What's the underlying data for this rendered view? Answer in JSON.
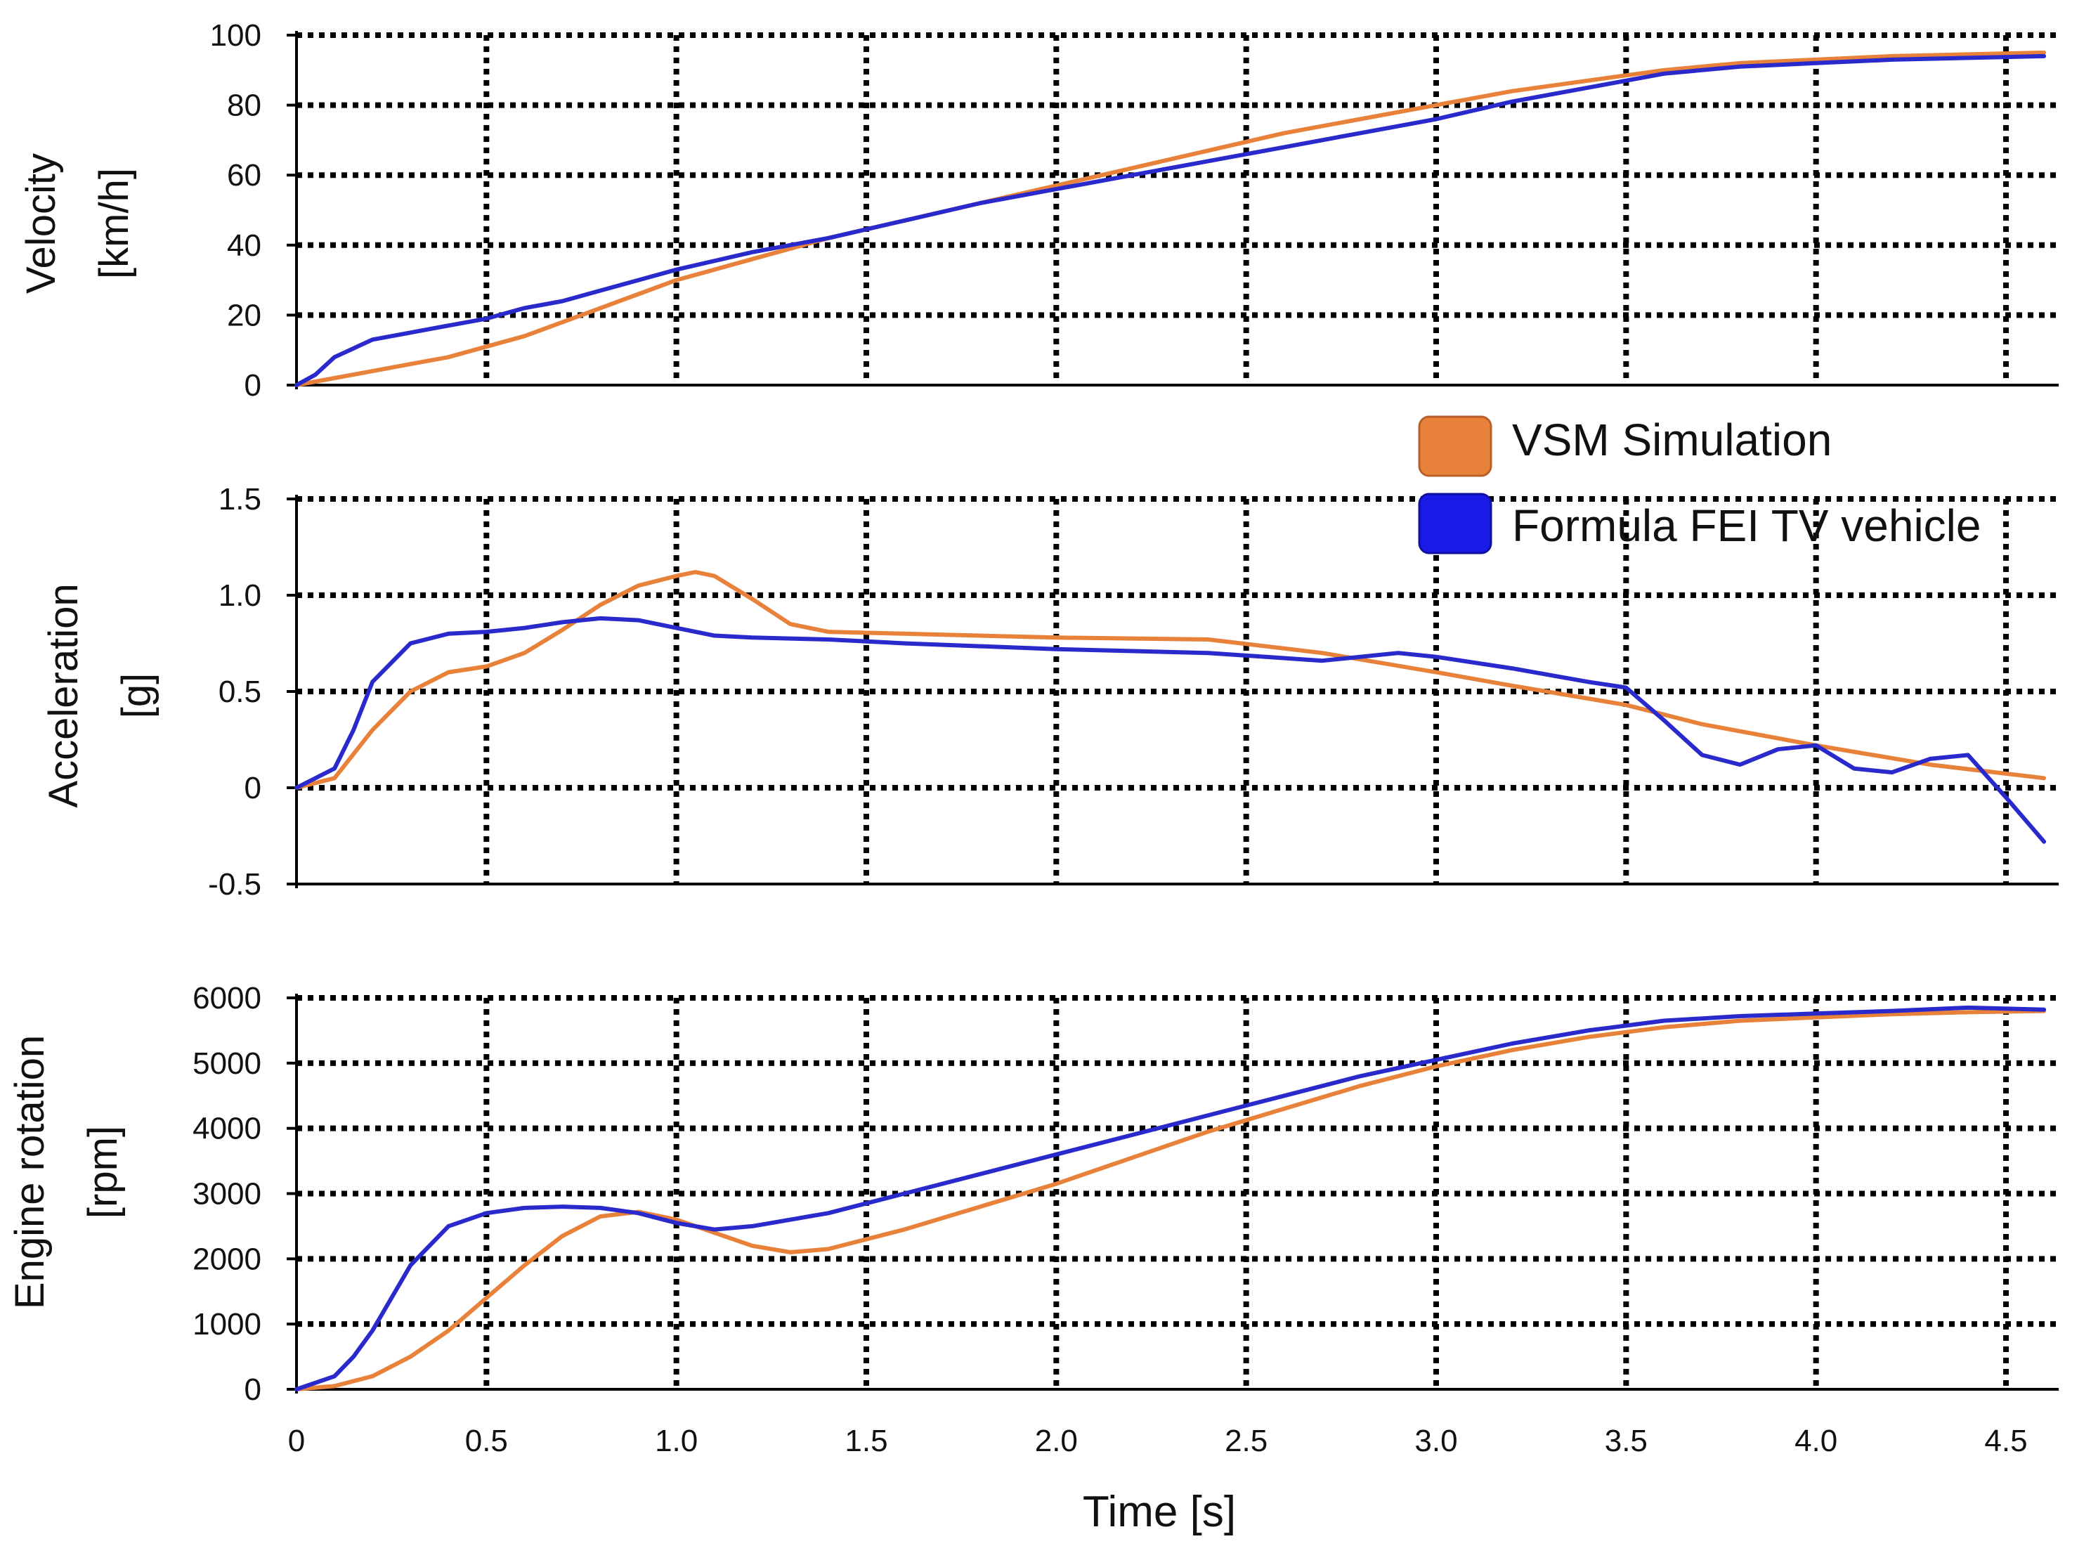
{
  "chart_data": [
    {
      "type": "line",
      "id": "velocity",
      "ylabel_lines": [
        "Velocity",
        "[km/h]"
      ],
      "ylim": [
        0,
        100
      ],
      "yticks": [
        0,
        20,
        40,
        60,
        80,
        100
      ],
      "ytick_labels": [
        "0",
        "20",
        "40",
        "60",
        "80",
        "100"
      ],
      "xlim": [
        0,
        4.6
      ],
      "grid": true,
      "series": [
        {
          "name": "VSM Simulation",
          "x": [
            0,
            0.1,
            0.2,
            0.3,
            0.4,
            0.5,
            0.6,
            0.7,
            0.8,
            0.9,
            1.0,
            1.2,
            1.4,
            1.6,
            1.8,
            2.0,
            2.2,
            2.4,
            2.6,
            2.8,
            3.0,
            3.2,
            3.4,
            3.6,
            3.8,
            4.0,
            4.2,
            4.4,
            4.6
          ],
          "y": [
            0,
            2,
            4,
            6,
            8,
            11,
            14,
            18,
            22,
            26,
            30,
            36,
            42,
            47,
            52,
            57,
            62,
            67,
            72,
            76,
            80,
            84,
            87,
            90,
            92,
            93,
            94,
            94.5,
            95
          ]
        },
        {
          "name": "Formula FEI TV vehicle",
          "x": [
            0,
            0.05,
            0.1,
            0.2,
            0.3,
            0.4,
            0.5,
            0.6,
            0.7,
            0.8,
            0.9,
            1.0,
            1.2,
            1.4,
            1.6,
            1.8,
            2.0,
            2.2,
            2.4,
            2.6,
            2.8,
            3.0,
            3.2,
            3.4,
            3.6,
            3.8,
            4.0,
            4.2,
            4.4,
            4.6
          ],
          "y": [
            0,
            3,
            8,
            13,
            15,
            17,
            19,
            22,
            24,
            27,
            30,
            33,
            38,
            42,
            47,
            52,
            56,
            60,
            64,
            68,
            72,
            76,
            81,
            85,
            89,
            91,
            92,
            93,
            93.5,
            94
          ]
        }
      ]
    },
    {
      "type": "line",
      "id": "acceleration",
      "ylabel_lines": [
        "Acceleration",
        "[g]"
      ],
      "ylim": [
        -0.5,
        1.5
      ],
      "yticks": [
        -0.5,
        0,
        0.5,
        1.0,
        1.5
      ],
      "ytick_labels": [
        "-0.5",
        "0",
        "0.5",
        "1.0",
        "1.5"
      ],
      "xlim": [
        0,
        4.6
      ],
      "grid": true,
      "series": [
        {
          "name": "VSM Simulation",
          "x": [
            0,
            0.1,
            0.2,
            0.3,
            0.4,
            0.5,
            0.6,
            0.7,
            0.8,
            0.9,
            1.0,
            1.05,
            1.1,
            1.2,
            1.3,
            1.4,
            1.6,
            2.0,
            2.4,
            2.7,
            3.0,
            3.2,
            3.5,
            3.7,
            4.0,
            4.3,
            4.6
          ],
          "y": [
            0,
            0.05,
            0.3,
            0.5,
            0.6,
            0.63,
            0.7,
            0.82,
            0.95,
            1.05,
            1.1,
            1.12,
            1.1,
            0.98,
            0.85,
            0.81,
            0.8,
            0.78,
            0.77,
            0.7,
            0.6,
            0.53,
            0.43,
            0.33,
            0.22,
            0.12,
            0.05
          ]
        },
        {
          "name": "Formula FEI TV vehicle",
          "x": [
            0,
            0.1,
            0.15,
            0.2,
            0.3,
            0.4,
            0.5,
            0.6,
            0.7,
            0.8,
            0.9,
            1.0,
            1.1,
            1.2,
            1.4,
            1.6,
            2.0,
            2.4,
            2.7,
            2.9,
            3.0,
            3.2,
            3.4,
            3.5,
            3.6,
            3.7,
            3.8,
            3.9,
            4.0,
            4.1,
            4.2,
            4.3,
            4.4,
            4.5,
            4.6
          ],
          "y": [
            0,
            0.1,
            0.3,
            0.55,
            0.75,
            0.8,
            0.81,
            0.83,
            0.86,
            0.88,
            0.87,
            0.83,
            0.79,
            0.78,
            0.77,
            0.75,
            0.72,
            0.7,
            0.66,
            0.7,
            0.68,
            0.62,
            0.55,
            0.52,
            0.35,
            0.17,
            0.12,
            0.2,
            0.22,
            0.1,
            0.08,
            0.15,
            0.17,
            -0.05,
            -0.28
          ]
        }
      ]
    },
    {
      "type": "line",
      "id": "engine-rotation",
      "ylabel_lines": [
        "Engine rotation",
        "[rpm]"
      ],
      "ylim": [
        0,
        6000
      ],
      "yticks": [
        0,
        1000,
        2000,
        3000,
        4000,
        5000,
        6000
      ],
      "ytick_labels": [
        "0",
        "1000",
        "2000",
        "3000",
        "4000",
        "5000",
        "6000"
      ],
      "xlim": [
        0,
        4.6
      ],
      "grid": true,
      "xlabel": "Time [s]",
      "xticks": [
        0,
        0.5,
        1.0,
        1.5,
        2.0,
        2.5,
        3.0,
        3.5,
        4.0,
        4.5
      ],
      "xtick_labels": [
        "0",
        "0.5",
        "1.0",
        "1.5",
        "2.0",
        "2.5",
        "3.0",
        "3.5",
        "4.0",
        "4.5"
      ],
      "series": [
        {
          "name": "VSM Simulation",
          "x": [
            0,
            0.1,
            0.2,
            0.3,
            0.4,
            0.5,
            0.6,
            0.7,
            0.8,
            0.9,
            1.0,
            1.1,
            1.2,
            1.3,
            1.4,
            1.6,
            1.8,
            2.0,
            2.2,
            2.4,
            2.6,
            2.8,
            3.0,
            3.2,
            3.4,
            3.6,
            3.8,
            4.0,
            4.2,
            4.4,
            4.6
          ],
          "y": [
            0,
            50,
            200,
            500,
            900,
            1400,
            1900,
            2350,
            2650,
            2720,
            2600,
            2400,
            2200,
            2100,
            2150,
            2450,
            2800,
            3150,
            3550,
            3950,
            4300,
            4650,
            4950,
            5200,
            5400,
            5550,
            5650,
            5700,
            5750,
            5780,
            5800
          ]
        },
        {
          "name": "Formula FEI TV vehicle",
          "x": [
            0,
            0.1,
            0.15,
            0.2,
            0.3,
            0.4,
            0.5,
            0.6,
            0.7,
            0.8,
            0.9,
            1.0,
            1.1,
            1.2,
            1.4,
            1.6,
            1.8,
            2.0,
            2.2,
            2.4,
            2.6,
            2.8,
            3.0,
            3.2,
            3.4,
            3.6,
            3.8,
            4.0,
            4.2,
            4.4,
            4.6
          ],
          "y": [
            0,
            200,
            500,
            900,
            1900,
            2500,
            2700,
            2780,
            2800,
            2780,
            2700,
            2550,
            2450,
            2500,
            2700,
            3000,
            3300,
            3600,
            3900,
            4200,
            4500,
            4800,
            5050,
            5300,
            5500,
            5650,
            5720,
            5760,
            5800,
            5850,
            5820
          ]
        }
      ]
    }
  ],
  "legend": {
    "placement": "right, between top and middle panels",
    "entries": [
      {
        "label": "VSM Simulation",
        "color": "#e8823a"
      },
      {
        "label": "Formula FEI TV vehicle",
        "color": "#1a1ae6"
      }
    ]
  },
  "series_colors": {
    "VSM Simulation": "#e8823a",
    "Formula FEI TV vehicle": "#2a2acc"
  }
}
